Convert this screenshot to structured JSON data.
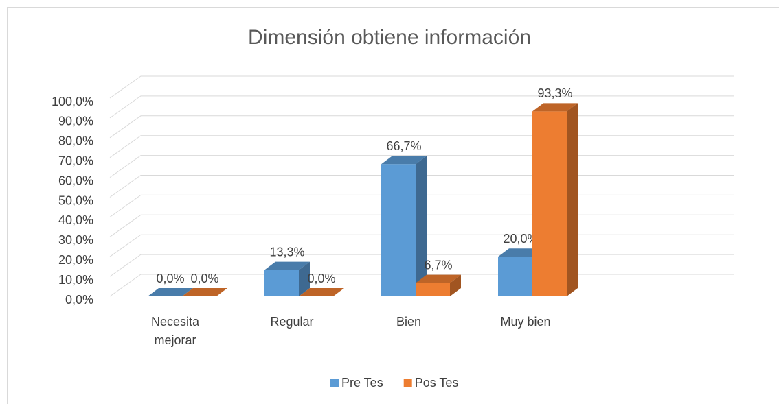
{
  "chart_data": {
    "type": "bar3d",
    "title": "Dimensión obtiene información",
    "categories": [
      "Necesita mejorar",
      "Regular",
      "Bien",
      "Muy bien"
    ],
    "series": [
      {
        "name": "Pre Tes",
        "color": "#5b9bd5",
        "values": [
          0,
          13.3,
          66.7,
          20
        ],
        "value_labels": [
          "0,0%",
          "13,3%",
          "66,7%",
          "20,0%"
        ]
      },
      {
        "name": "Pos Tes",
        "color": "#ed7d31",
        "values": [
          0,
          0,
          6.7,
          93.3
        ],
        "value_labels": [
          "0,0%",
          "0,0%",
          "6,7%",
          "93,3%"
        ]
      }
    ],
    "ylim": [
      0,
      100
    ],
    "yticks": [
      {
        "value": 0,
        "label": "0,0%"
      },
      {
        "value": 10,
        "label": "10,0%"
      },
      {
        "value": 20,
        "label": "20,0%"
      },
      {
        "value": 30,
        "label": "30,0%"
      },
      {
        "value": 40,
        "label": "40,0%"
      },
      {
        "value": 50,
        "label": "50,0%"
      },
      {
        "value": 60,
        "label": "60,0%"
      },
      {
        "value": 70,
        "label": "70,0%"
      },
      {
        "value": 80,
        "label": "80,0%"
      },
      {
        "value": 90,
        "label": "90,0%"
      },
      {
        "value": 100,
        "label": "100,0%"
      }
    ],
    "grid": true,
    "legend": "bottom"
  }
}
